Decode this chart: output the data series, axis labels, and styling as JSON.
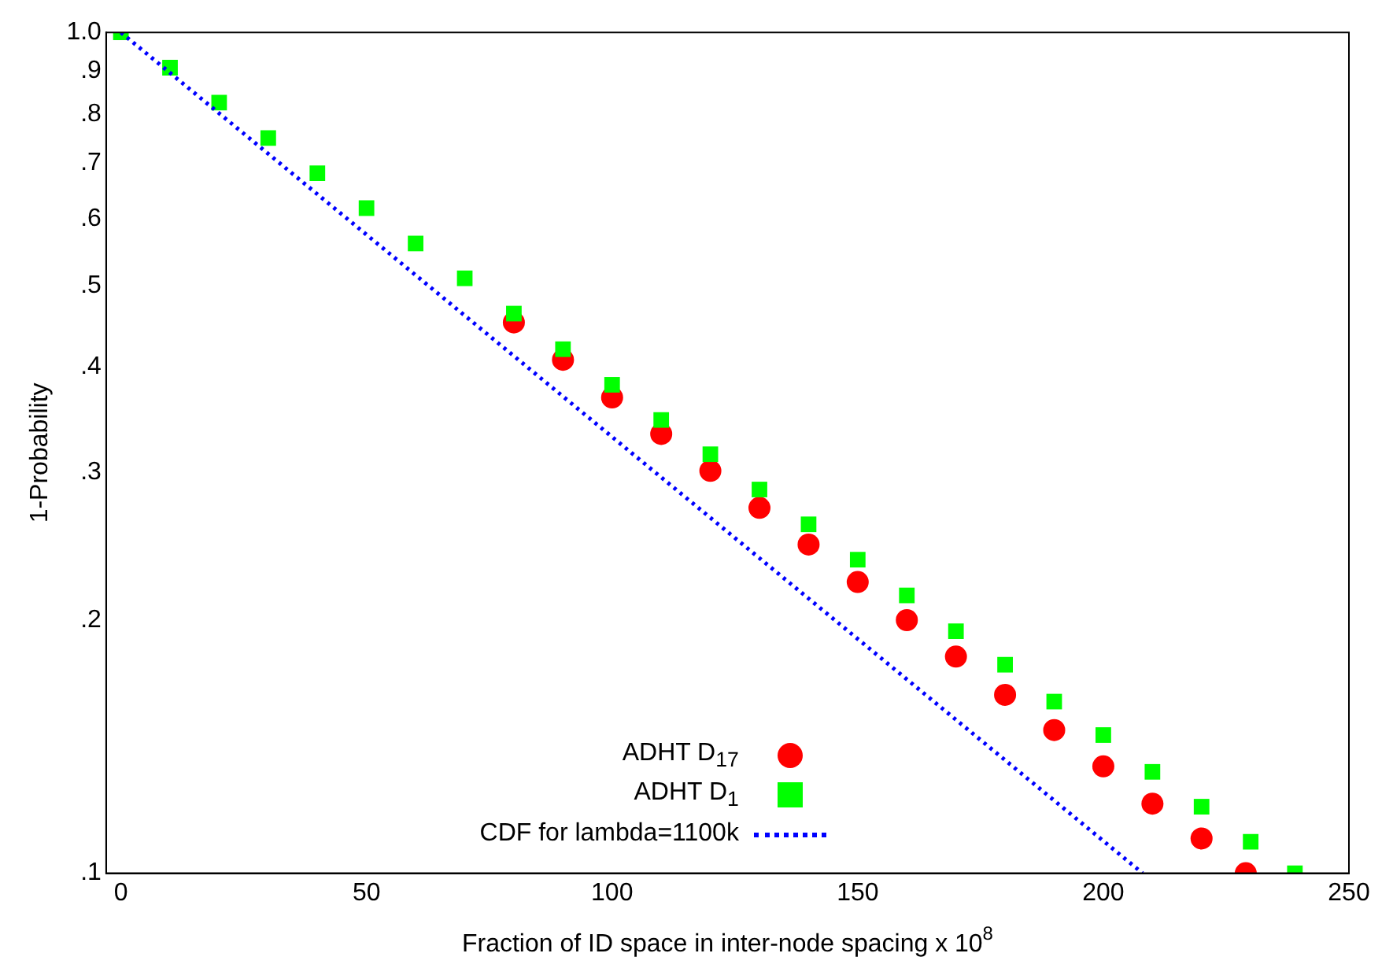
{
  "chart_data": {
    "type": "scatter",
    "xlabel": "Fraction of ID space in inter-node spacing x 10$^{8}$",
    "ylabel": "1-Probability",
    "log": "y",
    "xlim": [
      -3,
      250
    ],
    "ylim": [
      0.1,
      1.0
    ],
    "xticks": [
      0,
      50,
      100,
      150,
      200,
      250
    ],
    "yticks": [
      {
        "value": 0.1,
        "label": ".1"
      },
      {
        "value": 0.2,
        "label": ".2"
      },
      {
        "value": 0.3,
        "label": ".3"
      },
      {
        "value": 0.4,
        "label": ".4"
      },
      {
        "value": 0.5,
        "label": ".5"
      },
      {
        "value": 0.6,
        "label": ".6"
      },
      {
        "value": 0.7,
        "label": ".7"
      },
      {
        "value": 0.8,
        "label": ".8"
      },
      {
        "value": 0.9,
        "label": ".9"
      },
      {
        "value": 1.0,
        "label": "1.0"
      }
    ],
    "grid": false,
    "legend": "bottom",
    "series": [
      {
        "name": "ADHT D$_{17}$",
        "color": "#ff0000",
        "marker": "circle",
        "x": [
          80,
          90,
          100,
          110,
          120,
          130,
          140,
          150,
          160,
          170,
          180,
          190,
          200,
          210,
          220,
          229
        ],
        "values": [
          0.452,
          0.408,
          0.368,
          0.333,
          0.301,
          0.272,
          0.246,
          0.222,
          0.2,
          0.181,
          0.163,
          0.148,
          0.134,
          0.121,
          0.11,
          0.1
        ]
      },
      {
        "name": "ADHT D$_{1}$",
        "color": "#00ff00",
        "marker": "square",
        "x": [
          0,
          10,
          20,
          30,
          40,
          50,
          60,
          70,
          80,
          90,
          100,
          110,
          120,
          130,
          140,
          150,
          160,
          170,
          180,
          190,
          200,
          210,
          220,
          230,
          239
        ],
        "values": [
          1.0,
          0.908,
          0.825,
          0.749,
          0.68,
          0.618,
          0.561,
          0.51,
          0.463,
          0.42,
          0.381,
          0.346,
          0.315,
          0.286,
          0.26,
          0.236,
          0.214,
          0.194,
          0.177,
          0.16,
          0.146,
          0.132,
          0.12,
          0.109,
          0.1
        ]
      },
      {
        "name": "CDF for lambda=1100k",
        "type": "line",
        "color": "#0000ff",
        "marker": "none",
        "line_style": "dotted",
        "x": [
          0,
          104,
          208
        ],
        "values": [
          1.0,
          0.316,
          0.1
        ]
      }
    ]
  }
}
